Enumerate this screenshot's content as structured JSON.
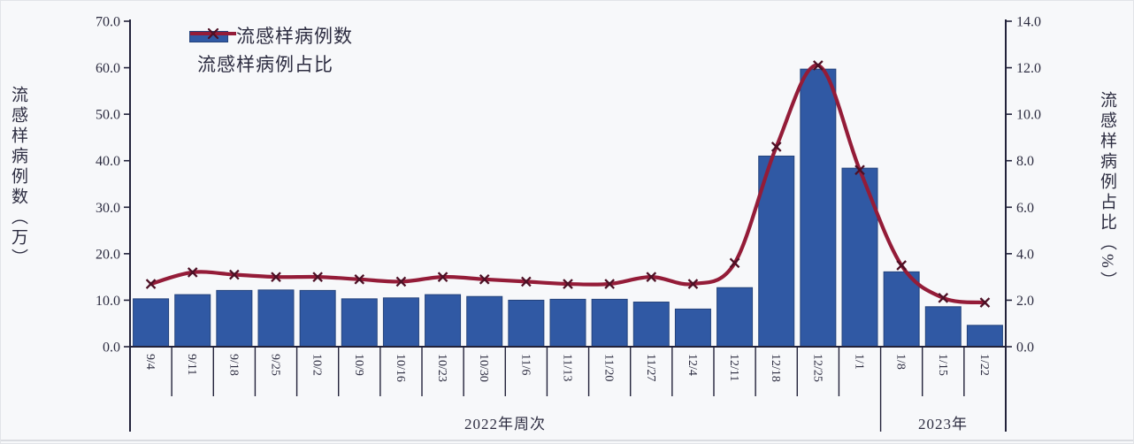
{
  "legend": {
    "bar_label": "流感样病例数",
    "line_label": "流感样病例占比"
  },
  "axes": {
    "left_title": "流感样病例数（万）",
    "right_title": "流感样病例占比（%）",
    "left_ticks": [
      "0.0",
      "10.0",
      "20.0",
      "30.0",
      "40.0",
      "50.0",
      "60.0",
      "70.0"
    ],
    "right_ticks": [
      "0.0",
      "2.0",
      "4.0",
      "6.0",
      "8.0",
      "10.0",
      "12.0",
      "14.0"
    ],
    "groups": [
      {
        "label": "2022年周次",
        "start": 0,
        "end": 17
      },
      {
        "label": "2023年",
        "start": 18,
        "end": 20
      }
    ]
  },
  "colors": {
    "bar": "#3059a4",
    "bar_edge": "#24437c",
    "line": "#941c38",
    "marker": "#4d1025",
    "axis": "#22223a",
    "text": "#2c2c40",
    "background": "#f7f8fa"
  },
  "chart_data": {
    "type": "bar+line",
    "categories": [
      "9/4",
      "9/11",
      "9/18",
      "9/25",
      "10/2",
      "10/9",
      "10/16",
      "10/23",
      "10/30",
      "11/6",
      "11/13",
      "11/20",
      "11/27",
      "12/4",
      "12/11",
      "12/18",
      "12/25",
      "1/1",
      "1/8",
      "1/15",
      "1/22"
    ],
    "series": [
      {
        "name": "流感样病例数",
        "type": "bar",
        "axis": "left",
        "values": [
          10.3,
          11.2,
          12.1,
          12.2,
          12.1,
          10.3,
          10.5,
          11.2,
          10.8,
          10.0,
          10.2,
          10.2,
          9.6,
          8.1,
          12.7,
          41.0,
          59.7,
          38.4,
          16.1,
          8.6,
          4.6
        ]
      },
      {
        "name": "流感样病例占比",
        "type": "line",
        "axis": "right",
        "values": [
          2.7,
          3.2,
          3.1,
          3.0,
          3.0,
          2.9,
          2.8,
          3.0,
          2.9,
          2.8,
          2.7,
          2.7,
          3.0,
          2.7,
          3.6,
          8.6,
          12.1,
          7.6,
          3.5,
          2.1,
          1.9
        ]
      }
    ],
    "left_ylabel": "流感样病例数（万）",
    "right_ylabel": "流感样病例占比（%）",
    "left_ylim": [
      0,
      70
    ],
    "right_ylim": [
      0,
      14
    ],
    "x_group_labels": [
      "2022年周次",
      "2023年"
    ],
    "grid": false,
    "legend_position": "top-left",
    "title": ""
  }
}
